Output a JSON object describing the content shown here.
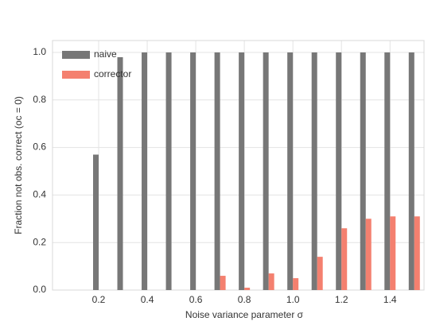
{
  "chart_data": {
    "type": "bar",
    "xlabel": "Noise variance parameter σ",
    "ylabel": "Fraction not obs. correct (oc = 0)",
    "x": [
      0.2,
      0.3,
      0.4,
      0.5,
      0.6,
      0.7,
      0.8,
      0.9,
      1.0,
      1.1,
      1.2,
      1.3,
      1.4,
      1.5
    ],
    "series": [
      {
        "name": "naive",
        "color": "#777777",
        "values": [
          0.57,
          0.98,
          1.0,
          1.0,
          1.0,
          1.0,
          1.0,
          1.0,
          1.0,
          1.0,
          1.0,
          1.0,
          1.0,
          1.0
        ]
      },
      {
        "name": "corrector",
        "color": "#f4806f",
        "values": [
          0,
          0,
          0,
          0,
          0,
          0.06,
          0.01,
          0.07,
          0.05,
          0.14,
          0.26,
          0.3,
          0.31,
          0.31
        ]
      }
    ],
    "xlim": [
      0.01,
      1.54
    ],
    "xticks": [
      0.2,
      0.4,
      0.6,
      0.8,
      {
        "value": 1,
        "label": "1.0"
      },
      1.2,
      1.4
    ],
    "ylim": [
      0,
      1.05
    ],
    "yticks": [
      {
        "value": 0,
        "label": "0.0"
      },
      0.2,
      0.4,
      0.6,
      0.8,
      {
        "value": 1,
        "label": "1.0"
      }
    ],
    "grid": true,
    "legend": "upper left"
  }
}
